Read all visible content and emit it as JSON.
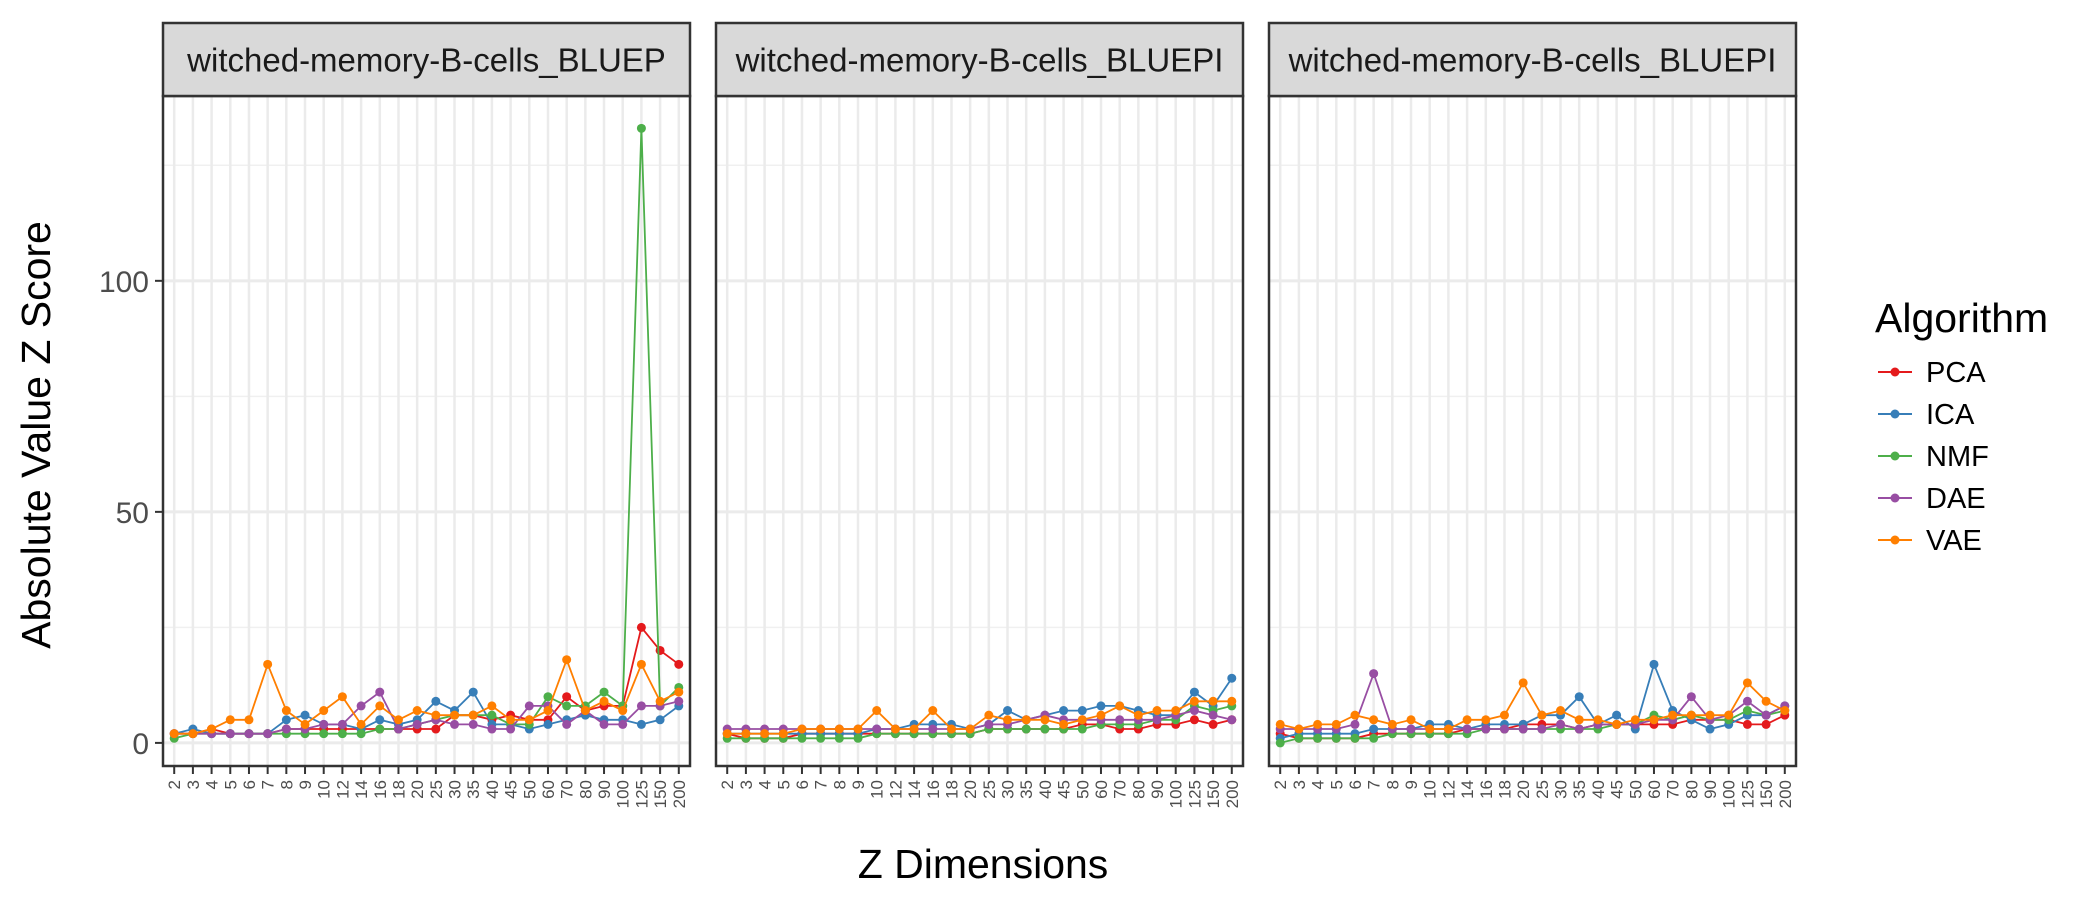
{
  "chart_data": {
    "type": "line",
    "ylabel": "Absolute Value Z Score",
    "xlabel": "Z Dimensions",
    "ylim": [
      -5,
      140
    ],
    "yticks": [
      0,
      50,
      100
    ],
    "grid": true,
    "legend": {
      "title": "Algorithm",
      "placement": "right",
      "entries": [
        "PCA",
        "ICA",
        "NMF",
        "DAE",
        "VAE"
      ]
    },
    "categories": [
      "2",
      "3",
      "4",
      "5",
      "6",
      "7",
      "8",
      "9",
      "10",
      "12",
      "14",
      "16",
      "18",
      "20",
      "25",
      "30",
      "35",
      "40",
      "45",
      "50",
      "60",
      "70",
      "80",
      "90",
      "100",
      "125",
      "150",
      "200"
    ],
    "colors": {
      "PCA": "#E41A1C",
      "ICA": "#377EB8",
      "NMF": "#4DAF4A",
      "DAE": "#984EA3",
      "VAE": "#FF7F00"
    },
    "panels": [
      {
        "strip": "witched-memory-B-cells_BLUEP",
        "series": [
          {
            "name": "PCA",
            "values": [
              2,
              2,
              3,
              2,
              2,
              2,
              3,
              3,
              3,
              3,
              3,
              3,
              3,
              3,
              3,
              6,
              6,
              5,
              6,
              5,
              5,
              10,
              7,
              8,
              8,
              25,
              20,
              17
            ]
          },
          {
            "name": "ICA",
            "values": [
              2,
              3,
              2,
              2,
              2,
              2,
              5,
              6,
              4,
              4,
              3,
              5,
              4,
              5,
              9,
              7,
              11,
              4,
              4,
              3,
              4,
              5,
              6,
              5,
              5,
              4,
              5,
              8
            ]
          },
          {
            "name": "NMF",
            "values": [
              1,
              2,
              2,
              2,
              2,
              2,
              2,
              2,
              2,
              2,
              2,
              3,
              3,
              4,
              5,
              6,
              6,
              6,
              4,
              4,
              10,
              8,
              8,
              11,
              8,
              133,
              8,
              12
            ]
          },
          {
            "name": "DAE",
            "values": [
              2,
              2,
              2,
              2,
              2,
              2,
              3,
              3,
              4,
              4,
              8,
              11,
              3,
              4,
              5,
              4,
              4,
              3,
              3,
              8,
              8,
              4,
              7,
              4,
              4,
              8,
              8,
              9
            ]
          },
          {
            "name": "VAE",
            "values": [
              2,
              2,
              3,
              5,
              5,
              17,
              7,
              4,
              7,
              10,
              4,
              8,
              5,
              7,
              6,
              6,
              6,
              8,
              5,
              5,
              7,
              18,
              7,
              9,
              7,
              17,
              9,
              11
            ]
          }
        ]
      },
      {
        "strip": "witched-memory-B-cells_BLUEPI",
        "series": [
          {
            "name": "PCA",
            "values": [
              2,
              1,
              1,
              1,
              2,
              2,
              2,
              2,
              2,
              2,
              2,
              2,
              2,
              2,
              3,
              3,
              3,
              3,
              3,
              4,
              4,
              3,
              3,
              4,
              4,
              5,
              4,
              5
            ]
          },
          {
            "name": "ICA",
            "values": [
              2,
              2,
              2,
              2,
              2,
              2,
              2,
              2,
              3,
              3,
              4,
              4,
              4,
              3,
              4,
              7,
              5,
              6,
              7,
              7,
              8,
              8,
              7,
              6,
              6,
              11,
              8,
              14
            ]
          },
          {
            "name": "NMF",
            "values": [
              1,
              1,
              1,
              1,
              1,
              1,
              1,
              1,
              2,
              2,
              2,
              2,
              2,
              2,
              3,
              3,
              3,
              3,
              3,
              3,
              4,
              4,
              4,
              5,
              5,
              8,
              7,
              8
            ]
          },
          {
            "name": "DAE",
            "values": [
              3,
              3,
              3,
              3,
              3,
              3,
              3,
              3,
              3,
              3,
              3,
              3,
              3,
              3,
              4,
              4,
              5,
              6,
              5,
              5,
              5,
              5,
              5,
              5,
              6,
              7,
              6,
              5
            ]
          },
          {
            "name": "VAE",
            "values": [
              2,
              2,
              2,
              2,
              3,
              3,
              3,
              3,
              7,
              3,
              3,
              7,
              3,
              3,
              6,
              5,
              5,
              5,
              4,
              5,
              6,
              8,
              6,
              7,
              7,
              9,
              9,
              9
            ]
          }
        ]
      },
      {
        "strip": "witched-memory-B-cells_BLUEPI",
        "series": [
          {
            "name": "PCA",
            "values": [
              2,
              1,
              1,
              1,
              1,
              2,
              2,
              2,
              2,
              2,
              3,
              3,
              3,
              4,
              4,
              4,
              3,
              4,
              4,
              4,
              4,
              4,
              5,
              5,
              5,
              4,
              4,
              6
            ]
          },
          {
            "name": "ICA",
            "values": [
              1,
              2,
              2,
              2,
              2,
              3,
              3,
              3,
              4,
              4,
              3,
              4,
              4,
              4,
              6,
              6,
              10,
              4,
              6,
              3,
              17,
              7,
              5,
              3,
              4,
              6,
              6,
              8
            ]
          },
          {
            "name": "NMF",
            "values": [
              0,
              1,
              1,
              1,
              1,
              1,
              2,
              2,
              2,
              2,
              2,
              3,
              3,
              3,
              3,
              3,
              3,
              3,
              4,
              4,
              6,
              5,
              6,
              5,
              5,
              7,
              6,
              7
            ]
          },
          {
            "name": "DAE",
            "values": [
              3,
              3,
              3,
              3,
              4,
              15,
              3,
              3,
              3,
              3,
              3,
              3,
              3,
              3,
              3,
              4,
              3,
              4,
              4,
              4,
              5,
              5,
              10,
              5,
              6,
              9,
              6,
              8
            ]
          },
          {
            "name": "VAE",
            "values": [
              4,
              3,
              4,
              4,
              6,
              5,
              4,
              5,
              3,
              3,
              5,
              5,
              6,
              13,
              6,
              7,
              5,
              5,
              4,
              5,
              5,
              6,
              6,
              6,
              6,
              13,
              9,
              7
            ]
          }
        ]
      }
    ]
  }
}
